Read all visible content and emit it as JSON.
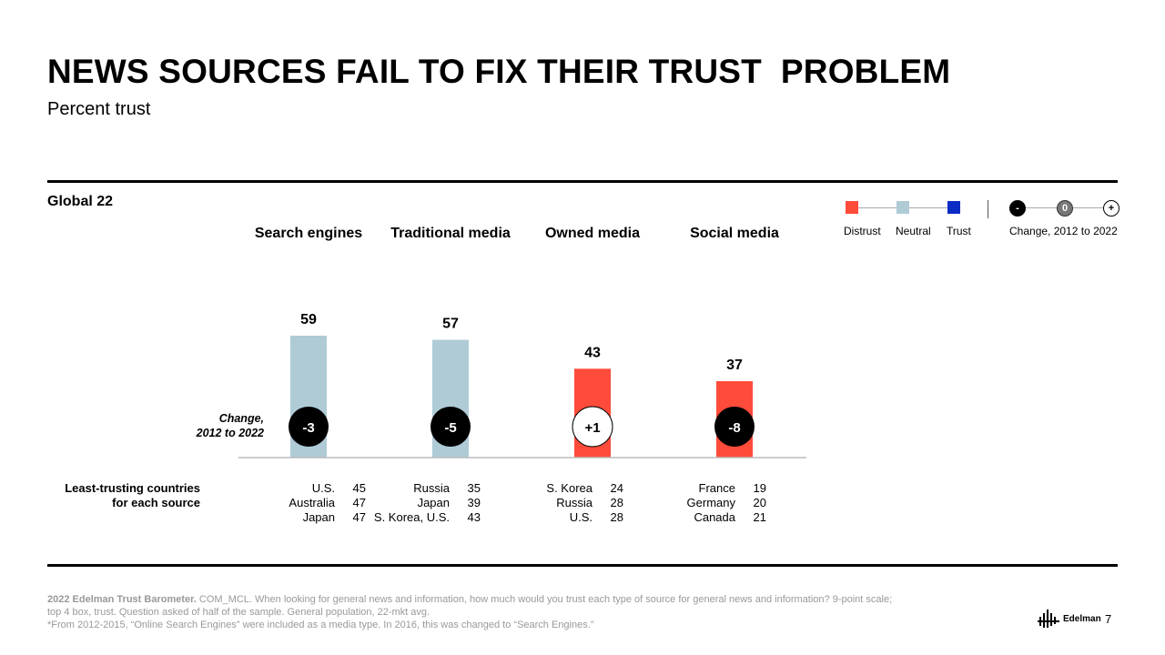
{
  "title": "NEWS SOURCES FAIL TO FIX THEIR TRUST  PROBLEM",
  "subtitle": "Percent trust",
  "section": "Global 22",
  "legend": {
    "distrust": "Distrust",
    "neutral": "Neutral",
    "trust": "Trust",
    "minus": "-",
    "zero": "0",
    "plus": "+",
    "change_label": "Change, 2012 to 2022"
  },
  "colors": {
    "distrust": "#ff4b3a",
    "neutral": "#aecbd6",
    "trust": "#0a2bc4"
  },
  "change_label_line1": "Change,",
  "change_label_line2": "2012 to 2022",
  "least_label_line1": "Least-trusting countries",
  "least_label_line2": "for each source",
  "chart_data": {
    "type": "bar",
    "title": "NEWS SOURCES FAIL TO FIX THEIR TRUST  PROBLEM",
    "ylabel": "Percent trust",
    "ylim": [
      0,
      100
    ],
    "categories": [
      "Search engines",
      "Traditional media",
      "Owned media",
      "Social media"
    ],
    "values": [
      59,
      57,
      43,
      37
    ],
    "value_labels": [
      "59",
      "57",
      "43",
      "37"
    ],
    "trust_level": [
      "neutral",
      "neutral",
      "distrust",
      "distrust"
    ],
    "change_2012_2022": [
      "-3",
      "-5",
      "+1",
      "-8"
    ],
    "least_trusting": [
      [
        {
          "country": "U.S.",
          "value": "45"
        },
        {
          "country": "Australia",
          "value": "47"
        },
        {
          "country": "Japan",
          "value": "47"
        }
      ],
      [
        {
          "country": "Russia",
          "value": "35"
        },
        {
          "country": "Japan",
          "value": "39"
        },
        {
          "country": "S. Korea, U.S.",
          "value": "43"
        }
      ],
      [
        {
          "country": "S. Korea",
          "value": "24"
        },
        {
          "country": "Russia",
          "value": "28"
        },
        {
          "country": "U.S.",
          "value": "28"
        }
      ],
      [
        {
          "country": "France",
          "value": "19"
        },
        {
          "country": "Germany",
          "value": "20"
        },
        {
          "country": "Canada",
          "value": "21"
        }
      ]
    ]
  },
  "footnote": {
    "bold": "2022 Edelman Trust Barometer.",
    "line1": " COM_MCL. When looking for general news and information, how much would you trust each type of source for general news and information? 9-point scale;",
    "line2": "top 4 box, trust. Question asked of half of the sample. General population, 22-mkt avg.",
    "line3": "*From 2012-2015, “Online Search Engines” were included as a media type. In 2016, this was changed to “Search Engines.”"
  },
  "logo_text": "Edelman",
  "page_number": "7"
}
